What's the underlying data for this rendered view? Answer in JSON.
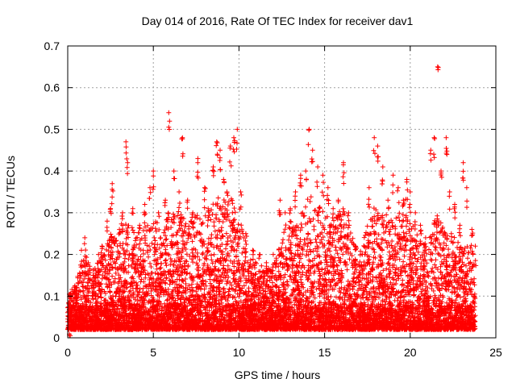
{
  "chart_data": {
    "type": "scatter",
    "title": "Day 014 of 2016, Rate Of TEC Index for receiver dav1",
    "xlabel": "GPS time / hours",
    "ylabel": "ROTI / TECUs",
    "xlim": [
      0,
      25
    ],
    "ylim": [
      0,
      0.7
    ],
    "xticks": [
      0,
      5,
      10,
      15,
      20,
      25
    ],
    "xtick_labels": [
      "0",
      "5",
      "10",
      "15",
      "20",
      "25"
    ],
    "yticks": [
      0,
      0.1,
      0.2,
      0.3,
      0.4,
      0.5,
      0.6,
      0.7
    ],
    "ytick_labels": [
      "0",
      "0.1",
      "0.2",
      "0.3",
      "0.4",
      "0.5",
      "0.6",
      "0.7"
    ],
    "grid": true,
    "marker": "+",
    "color": "#ff0000",
    "series": [
      {
        "name": "dav1",
        "points": [
          [
            0.1,
            0.05
          ],
          [
            0.3,
            0.09
          ],
          [
            0.5,
            0.12
          ],
          [
            0.8,
            0.21
          ],
          [
            1.0,
            0.24
          ],
          [
            1.2,
            0.18
          ],
          [
            1.5,
            0.15
          ],
          [
            1.8,
            0.2
          ],
          [
            2.0,
            0.22
          ],
          [
            2.3,
            0.28
          ],
          [
            2.5,
            0.31
          ],
          [
            2.6,
            0.37
          ],
          [
            2.9,
            0.22
          ],
          [
            3.2,
            0.3
          ],
          [
            3.4,
            0.47
          ],
          [
            3.5,
            0.42
          ],
          [
            3.8,
            0.31
          ],
          [
            4.2,
            0.27
          ],
          [
            4.5,
            0.32
          ],
          [
            4.8,
            0.36
          ],
          [
            5.0,
            0.4
          ],
          [
            5.3,
            0.3
          ],
          [
            5.7,
            0.33
          ],
          [
            5.9,
            0.54
          ],
          [
            6.2,
            0.4
          ],
          [
            6.5,
            0.35
          ],
          [
            6.7,
            0.48
          ],
          [
            7.0,
            0.33
          ],
          [
            7.3,
            0.3
          ],
          [
            7.6,
            0.43
          ],
          [
            8.0,
            0.36
          ],
          [
            8.2,
            0.31
          ],
          [
            8.5,
            0.41
          ],
          [
            8.7,
            0.47
          ],
          [
            8.9,
            0.45
          ],
          [
            9.1,
            0.38
          ],
          [
            9.3,
            0.35
          ],
          [
            9.5,
            0.46
          ],
          [
            9.7,
            0.48
          ],
          [
            9.9,
            0.5
          ],
          [
            10.1,
            0.35
          ],
          [
            10.4,
            0.25
          ],
          [
            10.8,
            0.21
          ],
          [
            11.2,
            0.2
          ],
          [
            11.6,
            0.18
          ],
          [
            12.0,
            0.2
          ],
          [
            12.4,
            0.33
          ],
          [
            12.7,
            0.3
          ],
          [
            13.0,
            0.31
          ],
          [
            13.3,
            0.35
          ],
          [
            13.6,
            0.39
          ],
          [
            13.9,
            0.4
          ],
          [
            14.1,
            0.5
          ],
          [
            14.3,
            0.45
          ],
          [
            14.6,
            0.41
          ],
          [
            14.9,
            0.39
          ],
          [
            15.2,
            0.36
          ],
          [
            15.5,
            0.31
          ],
          [
            15.8,
            0.33
          ],
          [
            16.1,
            0.42
          ],
          [
            16.4,
            0.3
          ],
          [
            16.8,
            0.22
          ],
          [
            17.2,
            0.2
          ],
          [
            17.6,
            0.36
          ],
          [
            17.9,
            0.48
          ],
          [
            18.1,
            0.46
          ],
          [
            18.4,
            0.41
          ],
          [
            18.7,
            0.33
          ],
          [
            19.0,
            0.39
          ],
          [
            19.3,
            0.36
          ],
          [
            19.6,
            0.33
          ],
          [
            19.8,
            0.38
          ],
          [
            20.0,
            0.35
          ],
          [
            20.3,
            0.3
          ],
          [
            20.6,
            0.27
          ],
          [
            20.9,
            0.24
          ],
          [
            21.2,
            0.45
          ],
          [
            21.4,
            0.48
          ],
          [
            21.6,
            0.65
          ],
          [
            21.8,
            0.4
          ],
          [
            22.1,
            0.48
          ],
          [
            22.3,
            0.35
          ],
          [
            22.6,
            0.32
          ],
          [
            22.9,
            0.27
          ],
          [
            23.1,
            0.42
          ],
          [
            23.3,
            0.36
          ],
          [
            23.6,
            0.26
          ],
          [
            23.8,
            0.22
          ]
        ]
      }
    ],
    "envelope": {
      "x": [
        0,
        0.5,
        1,
        1.5,
        2,
        2.5,
        3,
        3.5,
        4,
        4.5,
        5,
        5.5,
        6,
        6.5,
        7,
        7.5,
        8,
        8.5,
        9,
        9.5,
        10,
        10.5,
        11,
        11.5,
        12,
        12.5,
        13,
        13.5,
        14,
        14.5,
        15,
        15.5,
        16,
        16.5,
        17,
        17.5,
        18,
        18.5,
        19,
        19.5,
        20,
        20.5,
        21,
        21.5,
        22,
        22.5,
        23,
        23.5,
        23.8
      ],
      "y": [
        0.1,
        0.14,
        0.2,
        0.17,
        0.2,
        0.25,
        0.27,
        0.3,
        0.25,
        0.27,
        0.29,
        0.26,
        0.32,
        0.3,
        0.28,
        0.3,
        0.29,
        0.34,
        0.35,
        0.34,
        0.3,
        0.2,
        0.18,
        0.17,
        0.17,
        0.25,
        0.27,
        0.28,
        0.35,
        0.33,
        0.3,
        0.28,
        0.32,
        0.26,
        0.2,
        0.27,
        0.33,
        0.3,
        0.28,
        0.31,
        0.29,
        0.24,
        0.22,
        0.3,
        0.26,
        0.25,
        0.23,
        0.22,
        0.2
      ]
    },
    "baseline": 0.02,
    "x_end": 23.8
  }
}
